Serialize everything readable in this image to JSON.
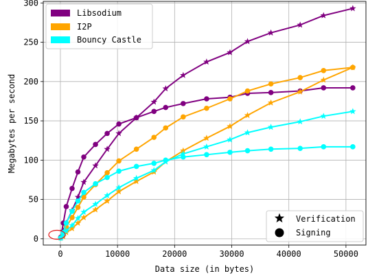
{
  "chart_data": {
    "type": "line",
    "xlabel": "Data size (in bytes)",
    "ylabel": "Megabytes per second",
    "xlim": [
      -3000,
      53500
    ],
    "ylim": [
      -8,
      302
    ],
    "xticks": [
      0,
      10000,
      20000,
      30000,
      40000,
      50000
    ],
    "yticks": [
      0,
      50,
      100,
      150,
      200,
      250,
      300
    ],
    "grid": true,
    "legend_position": "top-left",
    "marker_legend_position": "bottom-right",
    "colors": {
      "Libsodium": "#800080",
      "I2P": "#FFA500",
      "Bouncy Castle": "#00FFFF"
    },
    "legend": [
      "Libsodium",
      "I2P",
      "Bouncy Castle"
    ],
    "marker_legend": [
      {
        "label": "Verification",
        "marker": "star"
      },
      {
        "label": "Signing",
        "marker": "circle"
      }
    ],
    "x": [
      64,
      512,
      1024,
      2048,
      3072,
      4096,
      6144,
      8192,
      10240,
      13312,
      16384,
      18432,
      21504,
      25600,
      29696,
      32768,
      36864,
      41984,
      46080,
      51200
    ],
    "series": [
      {
        "name": "Libsodium",
        "kind": "Verification",
        "marker": "star",
        "values": [
          1,
          10,
          20,
          36,
          53,
          72,
          93,
          114,
          134,
          154,
          174,
          191,
          208,
          225,
          237,
          251,
          262,
          272,
          284,
          293
        ]
      },
      {
        "name": "Libsodium",
        "kind": "Signing",
        "marker": "circle",
        "values": [
          2,
          20,
          41,
          64,
          85,
          104,
          120,
          134,
          146,
          154,
          162,
          167,
          172,
          178,
          180,
          185,
          186,
          188,
          192,
          192
        ]
      },
      {
        "name": "I2P",
        "kind": "Verification",
        "marker": "star",
        "values": [
          1,
          3,
          8,
          13,
          20,
          27,
          37,
          48,
          60,
          73,
          85,
          98,
          112,
          128,
          143,
          157,
          173,
          187,
          202,
          218
        ]
      },
      {
        "name": "I2P",
        "kind": "Signing",
        "marker": "circle",
        "values": [
          1,
          6,
          15,
          27,
          40,
          53,
          69,
          84,
          99,
          114,
          129,
          141,
          155,
          166,
          178,
          188,
          197,
          205,
          214,
          218
        ]
      },
      {
        "name": "Bouncy Castle",
        "kind": "Verification",
        "marker": "star",
        "values": [
          1,
          5,
          10,
          17,
          26,
          34,
          44,
          55,
          65,
          77,
          87,
          98,
          108,
          117,
          126,
          135,
          142,
          149,
          156,
          162
        ]
      },
      {
        "name": "Bouncy Castle",
        "kind": "Signing",
        "marker": "circle",
        "values": [
          1,
          8,
          20,
          35,
          48,
          59,
          70,
          78,
          86,
          92,
          96,
          100,
          104,
          107,
          110,
          112,
          114,
          115,
          117,
          117
        ]
      }
    ]
  }
}
